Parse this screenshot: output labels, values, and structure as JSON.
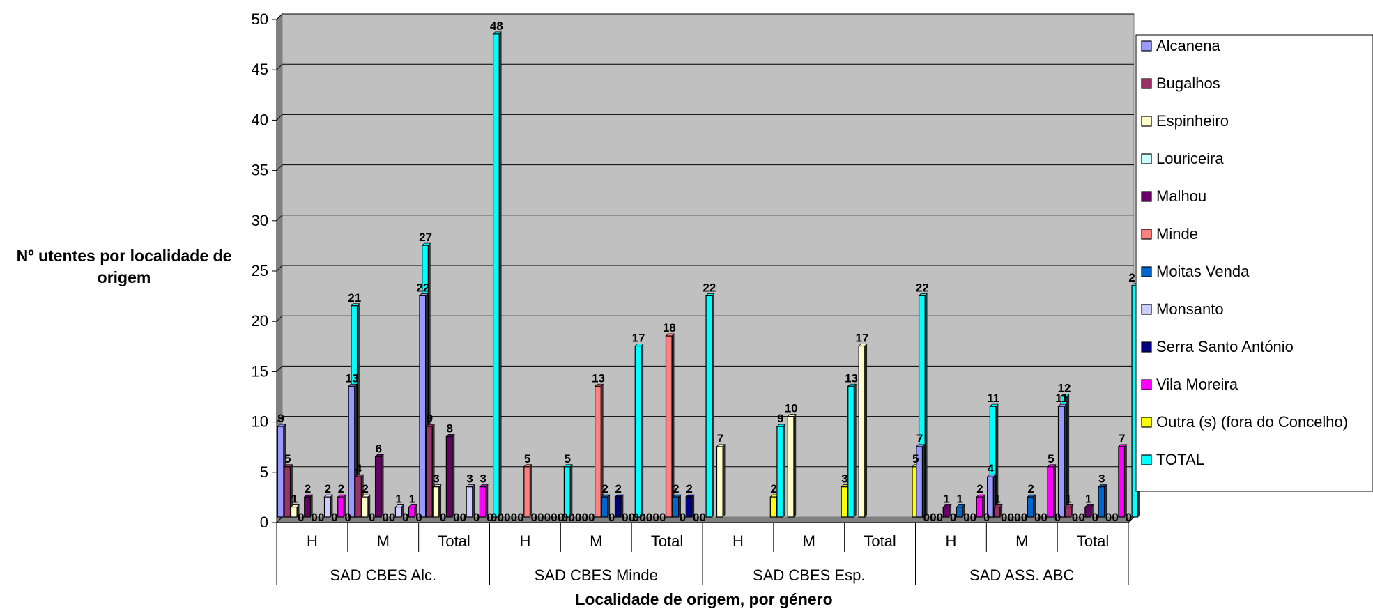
{
  "chart_data": {
    "type": "bar",
    "ylabel": "Nº utentes por localidade de origem",
    "xlabel": "Localidade de origem, por género",
    "ylim": [
      0,
      50
    ],
    "yticks": [
      0,
      5,
      10,
      15,
      20,
      25,
      30,
      35,
      40,
      45,
      50
    ],
    "grid": true,
    "legend_position": "right",
    "groups": [
      "SAD CBES Alc.",
      "SAD CBES Minde",
      "SAD CBES Esp.",
      "SAD ASS. ABC"
    ],
    "subcategories": [
      "H",
      "M",
      "Total"
    ],
    "series": [
      {
        "name": "Alcanena",
        "color": "#9999ff",
        "values": [
          9,
          13,
          22,
          0,
          0,
          0,
          null,
          null,
          null,
          7,
          4,
          11
        ]
      },
      {
        "name": "Bugalhos",
        "color": "#993366",
        "values": [
          5,
          4,
          9,
          0,
          0,
          0,
          null,
          null,
          null,
          0,
          1,
          1
        ]
      },
      {
        "name": "Espinheiro",
        "color": "#ffffcc",
        "values": [
          1,
          2,
          3,
          0,
          0,
          0,
          7,
          10,
          17,
          0,
          0,
          0
        ]
      },
      {
        "name": "Louriceira",
        "color": "#ccffff",
        "values": [
          0,
          0,
          0,
          0,
          0,
          0,
          null,
          null,
          null,
          0,
          0,
          0
        ]
      },
      {
        "name": "Malhou",
        "color": "#660066",
        "values": [
          2,
          6,
          8,
          0,
          0,
          0,
          null,
          null,
          null,
          1,
          0,
          1
        ]
      },
      {
        "name": "Minde",
        "color": "#ff8080",
        "values": [
          0,
          0,
          0,
          5,
          13,
          18,
          null,
          null,
          null,
          0,
          0,
          0
        ]
      },
      {
        "name": "Moitas Venda",
        "color": "#0066cc",
        "values": [
          0,
          0,
          0,
          0,
          2,
          2,
          null,
          null,
          null,
          1,
          2,
          3
        ]
      },
      {
        "name": "Monsanto",
        "color": "#ccccff",
        "values": [
          2,
          1,
          3,
          0,
          0,
          0,
          null,
          null,
          null,
          0,
          0,
          0
        ]
      },
      {
        "name": "Serra Santo António",
        "color": "#000080",
        "values": [
          0,
          0,
          0,
          0,
          2,
          2,
          null,
          null,
          null,
          0,
          0,
          0
        ]
      },
      {
        "name": "Vila Moreira",
        "color": "#ff00ff",
        "values": [
          2,
          1,
          3,
          0,
          0,
          0,
          null,
          null,
          null,
          2,
          5,
          7
        ]
      },
      {
        "name": "Outra (s) (fora do Concelho)",
        "color": "#ffff00",
        "values": [
          0,
          0,
          0,
          0,
          0,
          0,
          2,
          3,
          5,
          0,
          0,
          0
        ]
      },
      {
        "name": "TOTAL",
        "color": "#00ffff",
        "values": [
          21,
          27,
          48,
          5,
          17,
          22,
          9,
          13,
          22,
          11,
          12,
          23
        ]
      }
    ]
  }
}
